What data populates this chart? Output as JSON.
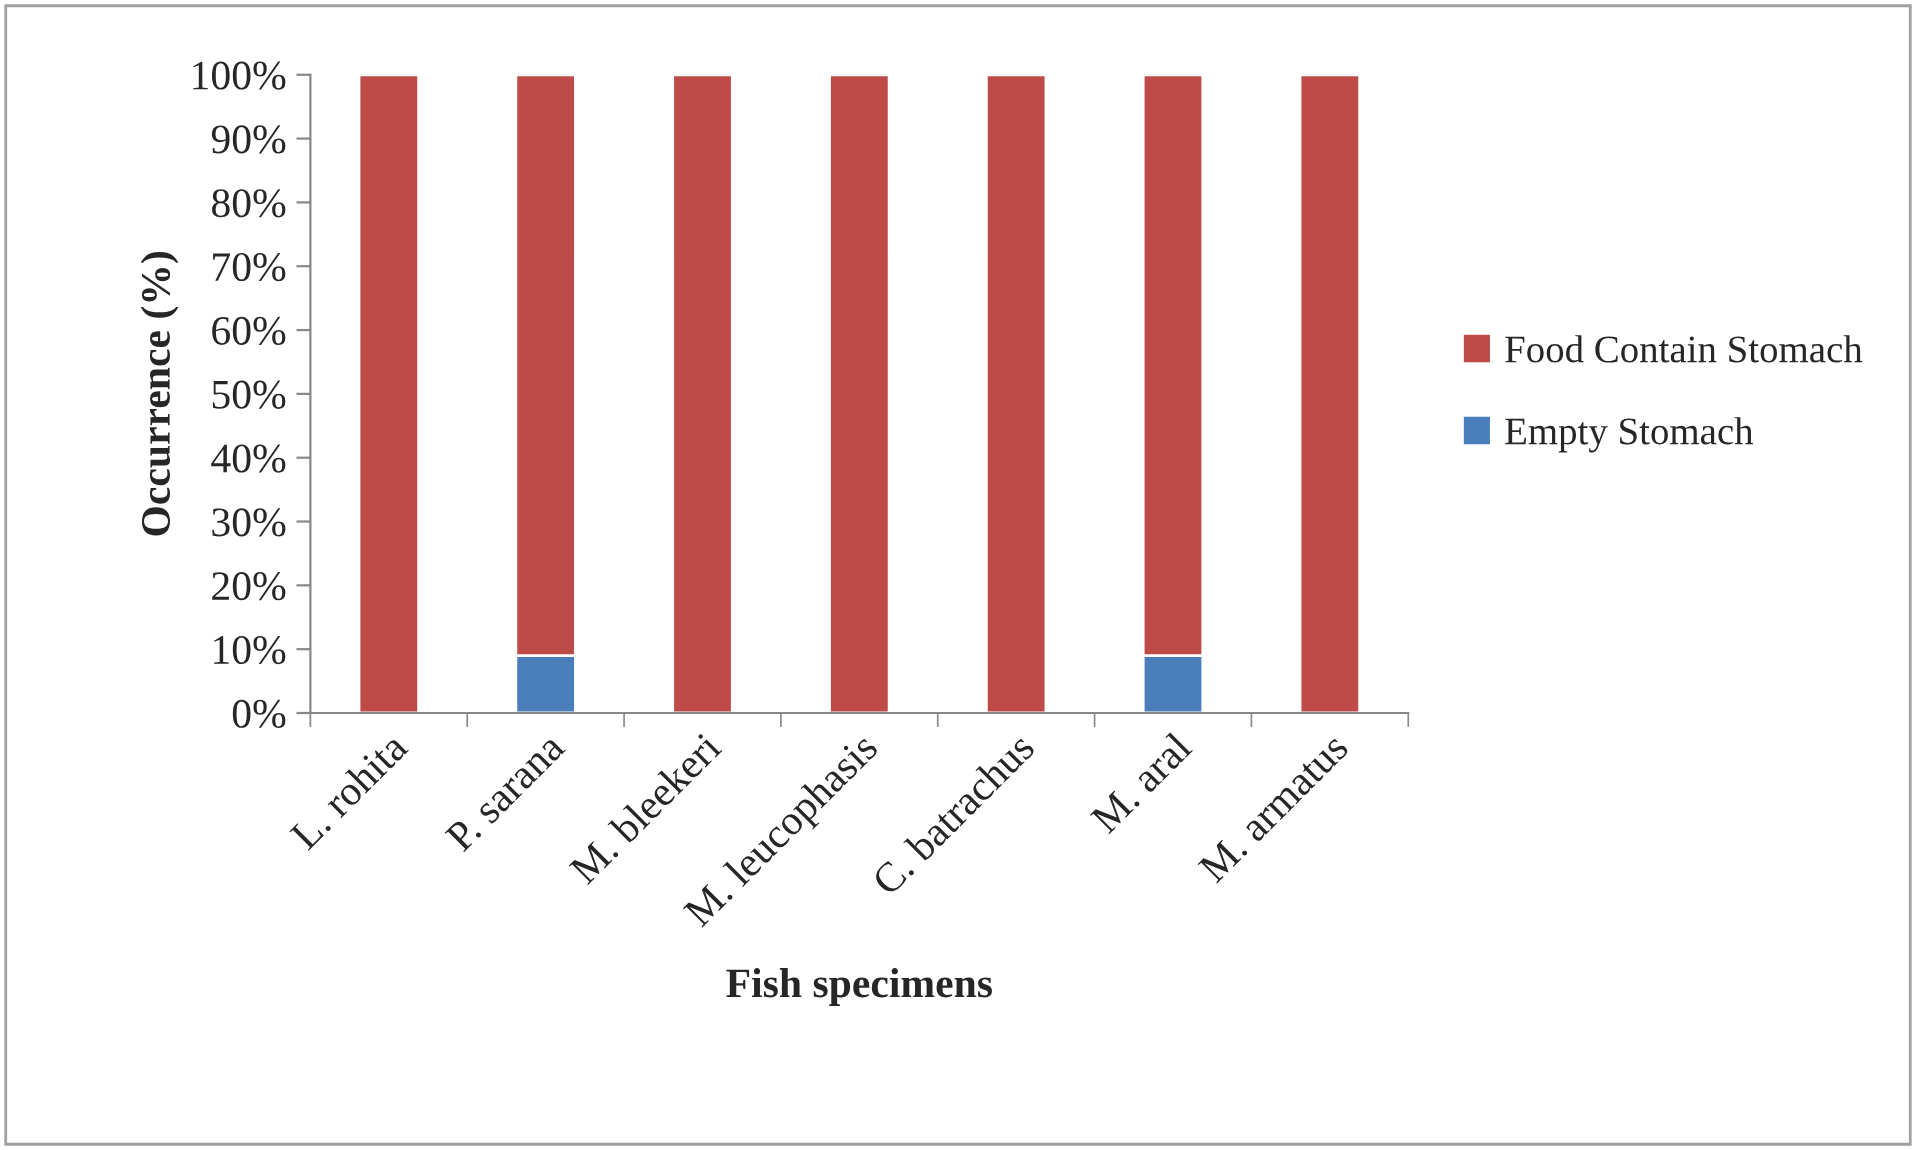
{
  "chart_data": {
    "type": "bar",
    "stacked": true,
    "xlabel": "Fish specimens",
    "ylabel": "Occurrence (%)",
    "categories": [
      "L. rohita",
      "P. sarana",
      "M. bleekeri",
      "M. leucophasis",
      "C. batrachus",
      "M. aral",
      "M. armatus"
    ],
    "series": [
      {
        "name": "Empty Stomach",
        "color": "#4a7ebb",
        "values": [
          0,
          9,
          0,
          0,
          0,
          9,
          0
        ]
      },
      {
        "name": "Food Contain Stomach",
        "color": "#be4b48",
        "values": [
          100,
          91,
          100,
          100,
          100,
          91,
          100
        ]
      }
    ],
    "ylim": [
      0,
      100
    ],
    "yticks": [
      {
        "value": 0,
        "label": "0%"
      },
      {
        "value": 10,
        "label": "10%"
      },
      {
        "value": 20,
        "label": "20%"
      },
      {
        "value": 30,
        "label": "30%"
      },
      {
        "value": 40,
        "label": "40%"
      },
      {
        "value": 50,
        "label": "50%"
      },
      {
        "value": 60,
        "label": "60%"
      },
      {
        "value": 70,
        "label": "70%"
      },
      {
        "value": 80,
        "label": "80%"
      },
      {
        "value": 90,
        "label": "90%"
      },
      {
        "value": 100,
        "label": "100%"
      }
    ],
    "grid": false,
    "legend": "right"
  }
}
